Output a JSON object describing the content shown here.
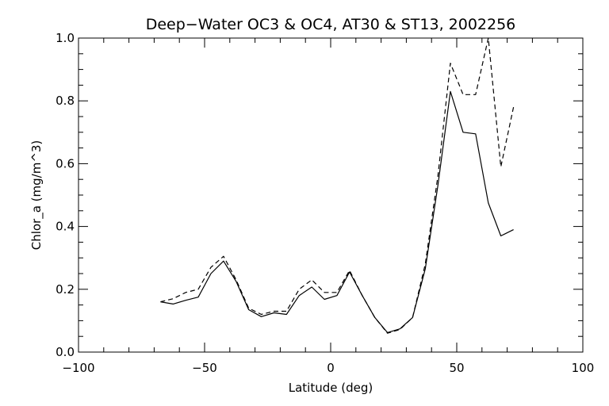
{
  "chart_data": {
    "type": "line",
    "title": "Deep−Water OC3 & OC4, AT30 & ST13, 2002256",
    "xlabel": "Latitude (deg)",
    "ylabel": "Chlor_a (mg/m^3)",
    "xlim": [
      -100,
      100
    ],
    "ylim": [
      0,
      1.0
    ],
    "x_ticks": [
      -100,
      -50,
      0,
      50,
      100
    ],
    "x_tick_labels": [
      "−100",
      "−50",
      "0",
      "50",
      "100"
    ],
    "y_ticks": [
      0.0,
      0.2,
      0.4,
      0.6,
      0.8,
      1.0
    ],
    "y_tick_labels": [
      "0.0",
      "0.2",
      "0.4",
      "0.6",
      "0.8",
      "1.0"
    ],
    "grid": false,
    "series": [
      {
        "style": "solid",
        "color": "#000000",
        "x": [
          -67.5,
          -62.5,
          -57.5,
          -52.5,
          -47.5,
          -42.5,
          -37.5,
          -32.5,
          -27.5,
          -22.5,
          -17.5,
          -12.5,
          -7.5,
          -2.5,
          2.5,
          7.5,
          12.5,
          17.5,
          22.5,
          27.5,
          32.5,
          37.5,
          42.5,
          47.5,
          52.5,
          57.5,
          62.5,
          67.5,
          72.5
        ],
        "y": [
          0.16,
          0.153,
          0.165,
          0.175,
          0.25,
          0.29,
          0.225,
          0.135,
          0.113,
          0.125,
          0.12,
          0.18,
          0.207,
          0.168,
          0.18,
          0.255,
          0.18,
          0.11,
          0.062,
          0.074,
          0.11,
          0.265,
          0.53,
          0.83,
          0.7,
          0.695,
          0.475,
          0.37,
          0.39
        ]
      },
      {
        "style": "dashed",
        "color": "#000000",
        "x": [
          -67.5,
          -62.5,
          -57.5,
          -52.5,
          -47.5,
          -42.5,
          -37.5,
          -32.5,
          -27.5,
          -22.5,
          -17.5,
          -12.5,
          -7.5,
          -2.5,
          2.5,
          7.5,
          12.5,
          17.5,
          22.5,
          27.5,
          32.5,
          37.5,
          42.5,
          47.5,
          52.5,
          57.5,
          62.5,
          67.5,
          72.5
        ],
        "y": [
          0.16,
          0.17,
          0.19,
          0.2,
          0.27,
          0.305,
          0.23,
          0.14,
          0.12,
          0.13,
          0.13,
          0.2,
          0.23,
          0.19,
          0.19,
          0.26,
          0.18,
          0.11,
          0.06,
          0.072,
          0.11,
          0.28,
          0.56,
          0.92,
          0.82,
          0.82,
          1.0,
          0.59,
          0.78
        ]
      }
    ]
  }
}
